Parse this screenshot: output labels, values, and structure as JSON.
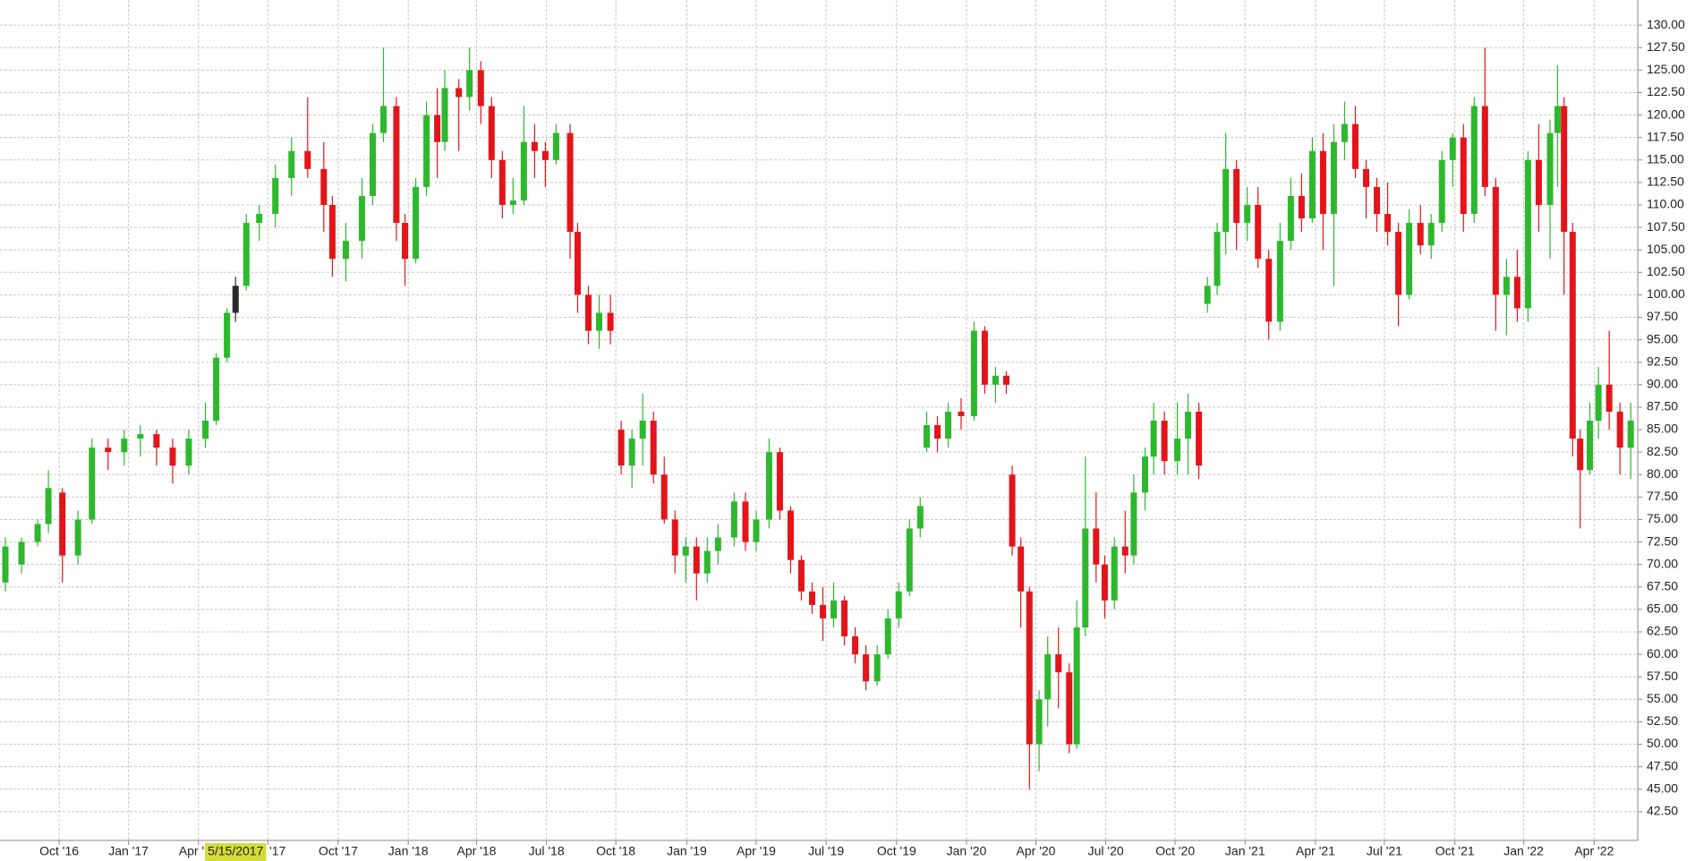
{
  "chart_data": {
    "type": "candlestick",
    "up_color": "#2db82d",
    "down_color": "#e3151a",
    "selected_color": "#2a2a2a",
    "grid": true,
    "xlim": [
      0,
      304.5
    ],
    "ylim": [
      39.3,
      132.8
    ],
    "crosshair": {
      "label": "5/15/2017",
      "x": 43.8
    },
    "xticks": [
      {
        "value": 11.0,
        "label": "Oct '16"
      },
      {
        "value": 23.9,
        "label": "Jan '17"
      },
      {
        "value": 36.9,
        "label": "Apr '17"
      },
      {
        "value": 49.8,
        "label": "Jul '17"
      },
      {
        "value": 62.9,
        "label": "Oct '17"
      },
      {
        "value": 75.9,
        "label": "Jan '18"
      },
      {
        "value": 88.6,
        "label": "Apr '18"
      },
      {
        "value": 101.6,
        "label": "Jul '18"
      },
      {
        "value": 114.5,
        "label": "Oct '18"
      },
      {
        "value": 127.7,
        "label": "Jan '19"
      },
      {
        "value": 140.6,
        "label": "Apr '19"
      },
      {
        "value": 153.6,
        "label": "Jul '19"
      },
      {
        "value": 166.7,
        "label": "Oct '19"
      },
      {
        "value": 179.7,
        "label": "Jan '20"
      },
      {
        "value": 192.6,
        "label": "Apr '20"
      },
      {
        "value": 205.6,
        "label": "Jul '20"
      },
      {
        "value": 218.5,
        "label": "Oct '20"
      },
      {
        "value": 231.5,
        "label": "Jan '21"
      },
      {
        "value": 244.6,
        "label": "Apr '21"
      },
      {
        "value": 257.4,
        "label": "Jul '21"
      },
      {
        "value": 270.5,
        "label": "Oct '21"
      },
      {
        "value": 283.3,
        "label": "Jan '22"
      },
      {
        "value": 296.4,
        "label": "Apr '22"
      }
    ],
    "yticks": [
      {
        "value": 42.5,
        "label": "42.50"
      },
      {
        "value": 45,
        "label": "45.00"
      },
      {
        "value": 47.5,
        "label": "47.50"
      },
      {
        "value": 50,
        "label": "50.00"
      },
      {
        "value": 52.5,
        "label": "52.50"
      },
      {
        "value": 55,
        "label": "55.00"
      },
      {
        "value": 57.5,
        "label": "57.50"
      },
      {
        "value": 60,
        "label": "60.00"
      },
      {
        "value": 62.5,
        "label": "62.50"
      },
      {
        "value": 65,
        "label": "65.00"
      },
      {
        "value": 67.5,
        "label": "67.50"
      },
      {
        "value": 70,
        "label": "70.00"
      },
      {
        "value": 72.5,
        "label": "72.50"
      },
      {
        "value": 75,
        "label": "75.00"
      },
      {
        "value": 77.5,
        "label": "77.50"
      },
      {
        "value": 80,
        "label": "80.00"
      },
      {
        "value": 82.5,
        "label": "82.50"
      },
      {
        "value": 85,
        "label": "85.00"
      },
      {
        "value": 87.5,
        "label": "87.50"
      },
      {
        "value": 90,
        "label": "90.00"
      },
      {
        "value": 92.5,
        "label": "92.50"
      },
      {
        "value": 95,
        "label": "95.00"
      },
      {
        "value": 97.5,
        "label": "97.50"
      },
      {
        "value": 100,
        "label": "100.00"
      },
      {
        "value": 102.5,
        "label": "102.50"
      },
      {
        "value": 105,
        "label": "105.00"
      },
      {
        "value": 107.5,
        "label": "107.50"
      },
      {
        "value": 110,
        "label": "110.00"
      },
      {
        "value": 112.5,
        "label": "112.50"
      },
      {
        "value": 115,
        "label": "115.00"
      },
      {
        "value": 117.5,
        "label": "117.50"
      },
      {
        "value": 120,
        "label": "120.00"
      },
      {
        "value": 122.5,
        "label": "122.50"
      },
      {
        "value": 125,
        "label": "125.00"
      },
      {
        "value": 127.5,
        "label": "127.50"
      },
      {
        "value": 130,
        "label": "130.00"
      }
    ],
    "x": [
      1.0,
      4.0,
      7.0,
      9.0,
      11.6,
      14.5,
      17.1,
      20.1,
      23.1,
      26.1,
      29.1,
      32.1,
      35.1,
      38.2,
      40.2,
      42.2,
      43.8,
      45.8,
      48.2,
      51.2,
      54.2,
      57.2,
      60.2,
      61.8,
      64.3,
      67.3,
      69.3,
      71.3,
      73.7,
      75.3,
      77.3,
      79.3,
      81.3,
      82.7,
      85.3,
      87.3,
      89.4,
      91.4,
      93.4,
      95.4,
      97.4,
      99.4,
      101.4,
      103.4,
      106.0,
      107.4,
      109.4,
      111.4,
      113.5,
      115.5,
      117.5,
      119.5,
      121.5,
      123.5,
      125.5,
      127.5,
      129.5,
      131.5,
      133.5,
      136.5,
      138.6,
      140.6,
      143.0,
      145.0,
      147.0,
      149.0,
      151.0,
      153.0,
      155.0,
      157.0,
      159.0,
      161.0,
      163.1,
      165.1,
      167.1,
      169.1,
      171.1,
      172.3,
      174.3,
      176.3,
      178.7,
      181.1,
      183.1,
      185.1,
      187.1,
      188.2,
      189.8,
      191.4,
      193.2,
      194.8,
      196.8,
      198.8,
      200.2,
      201.8,
      203.8,
      205.4,
      207.2,
      209.2,
      210.8,
      212.9,
      214.5,
      216.5,
      218.9,
      220.9,
      222.9,
      224.5,
      226.3,
      227.9,
      229.9,
      231.9,
      233.9,
      235.9,
      238.0,
      240.0,
      242.0,
      244.0,
      246.0,
      248.0,
      250.0,
      252.0,
      254.0,
      256.0,
      258.0,
      260.0,
      262.0,
      264.1,
      266.1,
      268.1,
      270.1,
      272.1,
      274.1,
      276.1,
      278.1,
      280.1,
      282.1,
      284.1,
      286.1,
      288.2,
      289.6,
      290.8,
      292.4,
      293.8,
      295.6,
      297.2,
      299.2,
      301.2,
      303.2
    ],
    "open": [
      68,
      70,
      72.5,
      74.5,
      78,
      71,
      75,
      83,
      82.5,
      84,
      84.5,
      83,
      81,
      84,
      86,
      93,
      98,
      101,
      108,
      109,
      113,
      116,
      114,
      110,
      104,
      106,
      111,
      118,
      121,
      108,
      104,
      112,
      120,
      117,
      123,
      122,
      125,
      121,
      115,
      110,
      110.5,
      117,
      116,
      115,
      118,
      107,
      100,
      96,
      98,
      85,
      81,
      84,
      86,
      80,
      75,
      71,
      72,
      69,
      71.5,
      73,
      77,
      72.5,
      75,
      82.5,
      76,
      70.5,
      67,
      65.5,
      64,
      66,
      62,
      60,
      57,
      60,
      64,
      67,
      74,
      83,
      85.5,
      84,
      87,
      86.5,
      96,
      90,
      91,
      80,
      72,
      67,
      50,
      55,
      60,
      58,
      50,
      63,
      74,
      70,
      66,
      72,
      71,
      78,
      82,
      86,
      81.5,
      84,
      87,
      99,
      101,
      107,
      114,
      108,
      110,
      104,
      97,
      106,
      111,
      108.5,
      116,
      109,
      117,
      119,
      114,
      112,
      109,
      107,
      100,
      108,
      105.5,
      108,
      115,
      117.5,
      109,
      121,
      112,
      100,
      102,
      98.5,
      115,
      110,
      118,
      121,
      107,
      84,
      80.5,
      86,
      90,
      87,
      83
    ],
    "high": [
      73,
      73,
      75,
      80.5,
      78.5,
      76,
      84,
      84,
      85,
      85.5,
      85,
      84,
      85,
      88,
      93.5,
      98.5,
      102,
      109,
      110,
      114.5,
      117.5,
      122,
      117,
      111,
      108,
      113,
      119,
      127.5,
      122,
      109,
      113,
      121.5,
      123,
      125,
      124,
      127.5,
      126,
      122,
      116,
      113,
      121,
      119,
      117,
      119,
      119,
      108,
      101,
      100,
      100,
      86,
      85,
      89,
      87,
      82,
      76,
      73,
      73,
      73,
      74.5,
      78,
      78,
      76,
      84,
      83,
      76.5,
      71,
      68,
      67.5,
      68,
      66.5,
      63,
      61,
      61,
      65,
      68,
      75,
      77.5,
      87,
      86.5,
      88,
      88.5,
      97,
      96.5,
      92,
      91.5,
      81,
      73,
      67.5,
      56,
      62,
      63,
      59,
      66,
      82,
      78,
      71,
      73,
      76,
      80,
      83,
      88,
      87,
      88,
      89,
      88,
      102,
      108,
      118,
      115,
      112,
      112,
      105,
      108,
      113,
      113.5,
      117.5,
      118,
      119,
      121.5,
      121,
      115,
      113,
      112.5,
      108,
      109.5,
      110,
      109,
      116,
      118,
      119,
      122,
      127.5,
      113,
      104,
      105,
      116,
      119,
      119.5,
      125.5,
      122,
      108,
      85,
      88,
      92,
      96,
      88,
      88
    ],
    "low": [
      67,
      69,
      72,
      73.5,
      68,
      70,
      74.5,
      80.5,
      81,
      82,
      81,
      79,
      80,
      83,
      85.5,
      92.5,
      97,
      100.5,
      106,
      107.5,
      111,
      113,
      107,
      102,
      101.5,
      104,
      110,
      117,
      106,
      101,
      103.5,
      111,
      113,
      116,
      116,
      120.5,
      119,
      113,
      108.5,
      109,
      110,
      113,
      112,
      114.5,
      104,
      98,
      94.5,
      94,
      94.5,
      80,
      78.5,
      81,
      79,
      74.5,
      69,
      68,
      66,
      68,
      70,
      72,
      71.5,
      71.5,
      74,
      75,
      69,
      66,
      64.5,
      61.5,
      63,
      61,
      59,
      56,
      56.5,
      59.5,
      63,
      66.5,
      73,
      82.5,
      82.5,
      83,
      85,
      86,
      89,
      88,
      89,
      71,
      63,
      45,
      47,
      52,
      54,
      49,
      49.5,
      62,
      68,
      64,
      65,
      69,
      70,
      76,
      80,
      80,
      80,
      80,
      79.5,
      98,
      100,
      104.5,
      105,
      106,
      103,
      95,
      96,
      105,
      107,
      108,
      105,
      101,
      115,
      113,
      108.5,
      107,
      105.5,
      96.5,
      99.5,
      104.5,
      104,
      107,
      112,
      107,
      108,
      111,
      96,
      95.5,
      97,
      97,
      107,
      104,
      112,
      100,
      82,
      74,
      80,
      84,
      85,
      80,
      79.5
    ],
    "close": [
      72,
      72.5,
      74.5,
      78.5,
      71,
      75,
      83,
      82.5,
      84,
      84.5,
      83,
      81,
      84,
      86,
      93,
      98,
      101,
      108,
      109,
      113,
      116,
      114,
      110,
      104,
      106,
      111,
      118,
      121,
      108,
      104,
      112,
      120,
      117,
      123,
      122,
      125,
      121,
      115,
      110,
      110.5,
      117,
      116,
      115,
      118,
      107,
      100,
      96,
      98,
      96,
      81,
      84,
      86,
      80,
      75,
      71,
      72,
      69,
      71.5,
      73,
      77,
      72.5,
      75,
      82.5,
      76,
      70.5,
      67,
      65.5,
      64,
      66,
      62,
      60,
      57,
      60,
      64,
      67,
      74,
      76.5,
      85.5,
      84,
      87,
      86.5,
      96,
      90,
      91,
      90,
      72,
      67,
      50,
      55,
      60,
      58,
      50,
      63,
      74,
      70,
      66,
      72,
      71,
      78,
      82,
      86,
      81.5,
      84,
      87,
      81,
      101,
      107,
      114,
      108,
      110,
      104,
      97,
      106,
      111,
      108.5,
      116,
      109,
      117,
      119,
      114,
      112,
      109,
      107,
      100,
      108,
      105.5,
      108,
      115,
      117.5,
      109,
      121,
      112,
      100,
      102,
      98.5,
      115,
      110,
      118,
      121,
      107,
      84,
      80.5,
      86,
      90,
      87,
      83,
      86
    ]
  }
}
